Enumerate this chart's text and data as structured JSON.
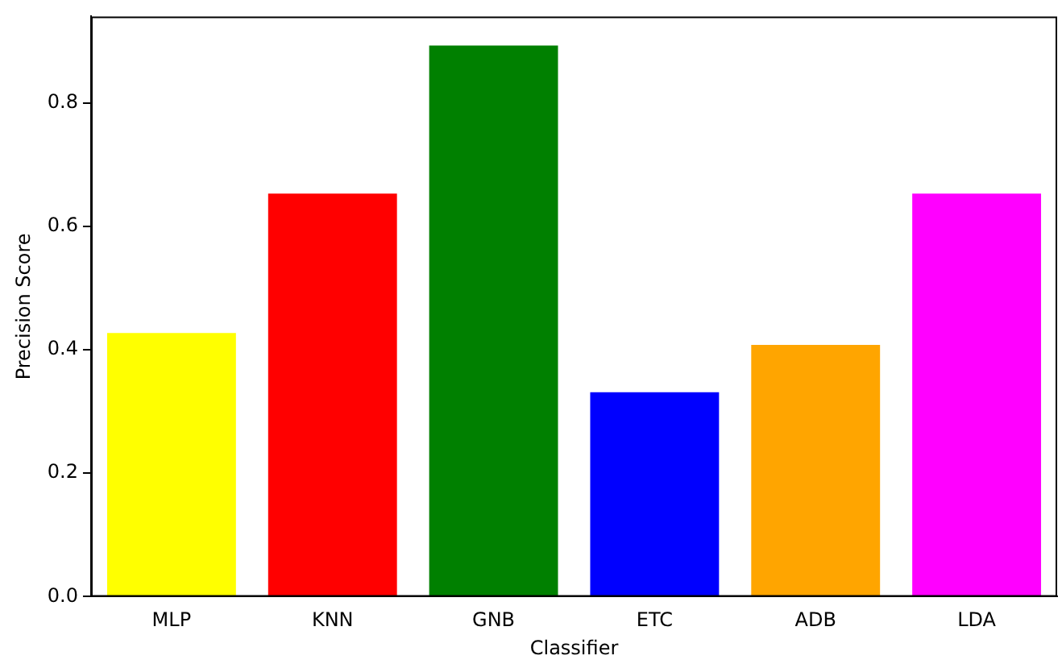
{
  "chart_data": {
    "type": "bar",
    "xlabel": "Classifier",
    "ylabel": "Precision Score",
    "categories": [
      "MLP",
      "KNN",
      "GNB",
      "ETC",
      "ADB",
      "LDA"
    ],
    "values": [
      0.427,
      0.653,
      0.893,
      0.331,
      0.408,
      0.653
    ],
    "colors": [
      "#ffff00",
      "#ff0000",
      "#008000",
      "#0000ff",
      "#ffa500",
      "#ff00ff"
    ],
    "ylim": [
      0,
      0.94
    ],
    "yticks": [
      {
        "value": 0,
        "label": "0.0"
      },
      {
        "value": 0.2,
        "label": "0.2"
      },
      {
        "value": 0.4,
        "label": "0.4"
      },
      {
        "value": 0.6,
        "label": "0.6"
      },
      {
        "value": 0.8,
        "label": "0.8"
      }
    ],
    "grid": false,
    "legend": false
  }
}
